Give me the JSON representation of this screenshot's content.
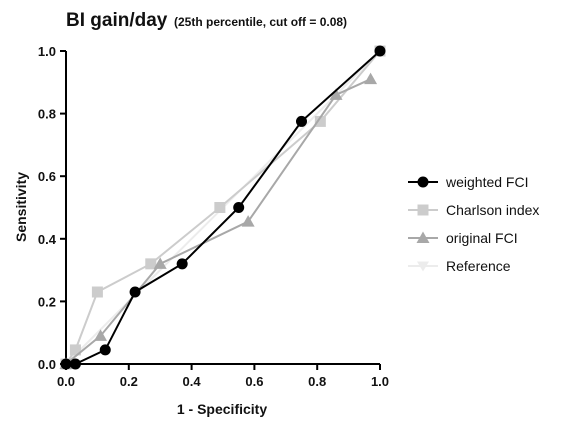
{
  "chart_data": {
    "type": "line",
    "title": "BI gain/day",
    "subtitle": "(25th percentile, cut off = 0.08)",
    "xlabel": "1 - Specificity",
    "ylabel": "Sensitivity",
    "xlim": [
      0,
      1
    ],
    "ylim": [
      0,
      1
    ],
    "xticks": [
      "0.0",
      "0.2",
      "0.4",
      "0.6",
      "0.8",
      "1.0"
    ],
    "yticks": [
      "0.0",
      "0.2",
      "0.4",
      "0.6",
      "0.8",
      "1.0"
    ],
    "grid": false,
    "legend_position": "right",
    "series": [
      {
        "name": "weighted FCI",
        "color": "#000000",
        "marker": "circle",
        "x": [
          0.0,
          0.03,
          0.125,
          0.22,
          0.37,
          0.55,
          0.75,
          1.0
        ],
        "y": [
          0.0,
          0.0,
          0.045,
          0.23,
          0.32,
          0.5,
          0.775,
          1.0
        ]
      },
      {
        "name": "Charlson index",
        "color": "#cccccc",
        "marker": "square",
        "x": [
          0.0,
          0.03,
          0.1,
          0.27,
          0.49,
          0.81,
          1.0
        ],
        "y": [
          0.0,
          0.045,
          0.23,
          0.32,
          0.5,
          0.775,
          1.0
        ]
      },
      {
        "name": "original FCI",
        "color": "#a8a8a8",
        "marker": "triangle",
        "x": [
          0.0,
          0.11,
          0.3,
          0.58,
          0.86,
          0.97
        ],
        "y": [
          0.0,
          0.09,
          0.32,
          0.455,
          0.86,
          0.91
        ]
      },
      {
        "name": "Reference",
        "color": "#ececec",
        "marker": "triangle-down",
        "x": [
          0.0,
          1.0
        ],
        "y": [
          0.0,
          1.0
        ]
      }
    ]
  }
}
